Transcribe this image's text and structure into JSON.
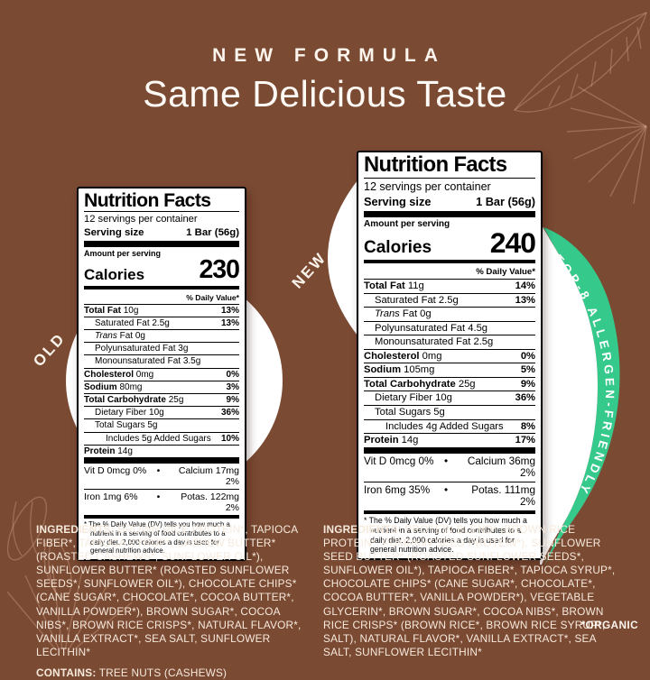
{
  "page": {
    "eyebrow": "NEW FORMULA",
    "title": "Same Delicious Taste",
    "organic_note": "*ORGANIC"
  },
  "colors": {
    "background": "#7b4a33",
    "ribbon_green": "#35c98c",
    "label_background": "#ffffff",
    "label_text": "#000000",
    "cream_text": "#f6eadd"
  },
  "badges": {
    "old": "OLD",
    "new": "NEW",
    "ribbon": "TOP-8 ALLERGEN-FRIENDLY"
  },
  "old_label": {
    "title": "Nutrition Facts",
    "servings": "12 servings per container",
    "serving_size_label": "Serving size",
    "serving_size_value": "1 Bar (56g)",
    "amount_per_serving": "Amount per serving",
    "calories_label": "Calories",
    "calories_value": "230",
    "daily_value_header": "% Daily Value*",
    "rows": [
      {
        "name": "Total Fat",
        "amount": "10g",
        "dv": "13%",
        "bold": true,
        "indent": 0
      },
      {
        "name": "Saturated Fat",
        "amount": "2.5g",
        "dv": "13%",
        "indent": 1
      },
      {
        "name": "Trans Fat",
        "amount": "0g",
        "indent": 1,
        "italic_first": true
      },
      {
        "name": "Polyunsaturated Fat",
        "amount": "3g",
        "indent": 1
      },
      {
        "name": "Monounsaturated Fat",
        "amount": "3.5g",
        "indent": 1
      },
      {
        "name": "Cholesterol",
        "amount": "0mg",
        "dv": "0%",
        "bold": true,
        "indent": 0
      },
      {
        "name": "Sodium",
        "amount": "80mg",
        "dv": "3%",
        "bold": true,
        "indent": 0
      },
      {
        "name": "Total Carbohydrate",
        "amount": "25g",
        "dv": "9%",
        "bold": true,
        "indent": 0
      },
      {
        "name": "Dietary Fiber",
        "amount": "10g",
        "dv": "36%",
        "indent": 1
      },
      {
        "name": "Total Sugars",
        "amount": "5g",
        "indent": 1
      },
      {
        "name": "Includes 5g Added Sugars",
        "amount": "",
        "dv": "10%",
        "indent": 2
      },
      {
        "name": "Protein",
        "amount": "14g",
        "bold": true,
        "indent": 0
      }
    ],
    "micros_separator": "•",
    "micros": [
      {
        "left": "Vit D 0mcg 0%",
        "right": "Calcium 17mg 2%"
      },
      {
        "left": "Iron 1mg 6%",
        "right": "Potas. 122mg 2%"
      }
    ],
    "footnote": "* The % Daily Value (DV) tells you how much a nutrient in a serving of food contributes to a daily diet. 2,000 calories a day is used for general nutrition advice."
  },
  "new_label": {
    "title": "Nutrition Facts",
    "servings": "12 servings per container",
    "serving_size_label": "Serving size",
    "serving_size_value": "1 Bar (56g)",
    "amount_per_serving": "Amount per serving",
    "calories_label": "Calories",
    "calories_value": "240",
    "daily_value_header": "% Daily Value*",
    "rows": [
      {
        "name": "Total Fat",
        "amount": "11g",
        "dv": "14%",
        "bold": true,
        "indent": 0
      },
      {
        "name": "Saturated Fat",
        "amount": "2.5g",
        "dv": "13%",
        "indent": 1
      },
      {
        "name": "Trans Fat",
        "amount": "0g",
        "indent": 1,
        "italic_first": true
      },
      {
        "name": "Polyunsaturated Fat",
        "amount": "4.5g",
        "indent": 1
      },
      {
        "name": "Monounsaturated Fat",
        "amount": "2.5g",
        "indent": 1
      },
      {
        "name": "Cholesterol",
        "amount": "0mg",
        "dv": "0%",
        "bold": true,
        "indent": 0
      },
      {
        "name": "Sodium",
        "amount": "105mg",
        "dv": "5%",
        "bold": true,
        "indent": 0
      },
      {
        "name": "Total Carbohydrate",
        "amount": "25g",
        "dv": "9%",
        "bold": true,
        "indent": 0
      },
      {
        "name": "Dietary Fiber",
        "amount": "10g",
        "dv": "36%",
        "indent": 1
      },
      {
        "name": "Total Sugars",
        "amount": "5g",
        "indent": 1
      },
      {
        "name": "Includes 4g Added Sugars",
        "amount": "",
        "dv": "8%",
        "indent": 2
      },
      {
        "name": "Protein",
        "amount": "14g",
        "dv": "17%",
        "bold": true,
        "indent": 0
      }
    ],
    "micros_separator": "•",
    "micros": [
      {
        "left": "Vit D 0mcg 0%",
        "right": "Calcium 36mg 2%"
      },
      {
        "left": "Iron 6mg 35%",
        "right": "Potas. 111mg 2%"
      }
    ],
    "footnote": "* The % Daily Value (DV) tells you how much a nutrient in a serving of food contributes to a daily diet. 2,000 calories a day is used for general nutrition advice."
  },
  "ingredients_old": {
    "lead": "INGREDIENTS:",
    "body": " BROWN RICE PROTEIN*, TAPIOCA FIBER*, TAPIOCA SYRUP*, CASHEW BUTTER* (ROASTED CASHEWS*, SUNFLOWER OIL*), SUNFLOWER BUTTER* (ROASTED SUNFLOWER SEEDS*, SUNFLOWER OIL*), CHOCOLATE CHIPS* (CANE SUGAR*, CHOCOLATE*, COCOA BUTTER*, VANILLA POWDER*), BROWN SUGAR*, COCOA NIBS*, BROWN RICE CRISPS*, NATURAL FLAVOR*, VANILLA EXTRACT*, SEA SALT, SUNFLOWER LECITHIN*",
    "contains_lead": "CONTAINS:",
    "contains_body": " TREE NUTS (CASHEWS)"
  },
  "ingredients_new": {
    "lead": "INGREDIENTS:",
    "body": " PROTEIN BLEND* (BROWN RICE PROTEIN*, PUMPKIN SEED PROTEIN*), SUNFLOWER SEED BUTTER* (ROASTED SUNFLOWER SEEDS*, SUNFLOWER OIL*), TAPIOCA FIBER*, TAPIOCA SYRUP*, CHOCOLATE CHIPS* (CANE SUGAR*, CHOCOLATE*, COCOA BUTTER*, VANILLA POWDER*), VEGETABLE GLYCERIN*, BROWN SUGAR*, COCOA NIBS*, BROWN RICE CRISPS* (BROWN RICE*, BROWN RICE SYRUP*, SALT), NATURAL FLAVOR*, VANILLA EXTRACT*, SEA SALT, SUNFLOWER LECITHIN*"
  }
}
